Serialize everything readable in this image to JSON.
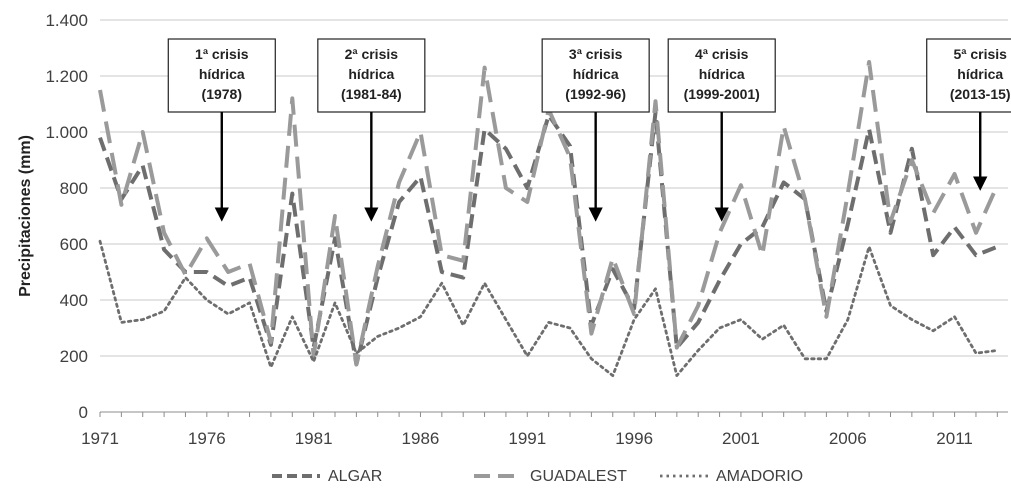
{
  "chart_data": {
    "type": "line",
    "title": "",
    "xlabel": "",
    "ylabel": "Precipitaciones (mm)",
    "ylim": [
      0,
      1400
    ],
    "xlim": [
      1971,
      2013.5
    ],
    "yticks": [
      0,
      200,
      400,
      600,
      800,
      1000,
      1200,
      1400
    ],
    "ytick_labels": [
      "0",
      "200",
      "400",
      "600",
      "800",
      "1.000",
      "1.200",
      "1.400"
    ],
    "xticks": [
      1971,
      1976,
      1981,
      1986,
      1991,
      1996,
      2001,
      2006,
      2011
    ],
    "xtick_labels": [
      "1971",
      "1976",
      "1981",
      "1986",
      "1991",
      "1996",
      "2001",
      "2006",
      "2011"
    ],
    "grid": "horizontal",
    "legend_position": "bottom",
    "x": [
      1971,
      1972,
      1973,
      1974,
      1975,
      1976,
      1977,
      1978,
      1979,
      1980,
      1981,
      1982,
      1983,
      1984,
      1985,
      1986,
      1987,
      1988,
      1989,
      1990,
      1991,
      1992,
      1993,
      1994,
      1995,
      1996,
      1997,
      1998,
      1999,
      2000,
      2001,
      2002,
      2003,
      2004,
      2005,
      2006,
      2007,
      2008,
      2009,
      2010,
      2011,
      2012,
      2013
    ],
    "series": [
      {
        "name": "ALGAR",
        "style": "dash",
        "color": "#6e6e6e",
        "values": [
          980,
          760,
          880,
          580,
          500,
          500,
          450,
          480,
          240,
          780,
          230,
          620,
          170,
          480,
          750,
          840,
          500,
          480,
          1010,
          940,
          800,
          1060,
          950,
          310,
          510,
          370,
          1070,
          230,
          320,
          470,
          600,
          660,
          820,
          760,
          360,
          670,
          1010,
          640,
          940,
          560,
          660,
          560,
          590
        ]
      },
      {
        "name": "GUADALEST",
        "style": "longdash",
        "color": "#9a9a9a",
        "values": [
          1150,
          740,
          1000,
          640,
          490,
          620,
          500,
          530,
          250,
          1120,
          200,
          700,
          170,
          520,
          820,
          1000,
          560,
          540,
          1230,
          800,
          750,
          1080,
          910,
          280,
          550,
          350,
          1110,
          230,
          380,
          640,
          810,
          560,
          1020,
          760,
          340,
          780,
          1250,
          680,
          900,
          710,
          850,
          640,
          810
        ]
      },
      {
        "name": "AMADORIO",
        "style": "dot",
        "color": "#6e6e6e",
        "values": [
          610,
          320,
          330,
          360,
          480,
          400,
          350,
          390,
          160,
          340,
          180,
          390,
          210,
          270,
          300,
          340,
          460,
          310,
          460,
          330,
          200,
          320,
          300,
          190,
          130,
          330,
          440,
          130,
          220,
          300,
          330,
          260,
          310,
          190,
          190,
          330,
          590,
          380,
          330,
          290,
          340,
          210,
          220
        ]
      }
    ],
    "annotations": [
      {
        "lines": [
          "1ª crisis",
          "hídrica",
          "(1978)"
        ],
        "arrow_x": 1976.7,
        "arrow_y": 690
      },
      {
        "lines": [
          "2ª crisis",
          "hídrica",
          "(1981-84)"
        ],
        "arrow_x": 1983.7,
        "arrow_y": 690
      },
      {
        "lines": [
          "3ª crisis",
          "hídrica",
          "(1992-96)"
        ],
        "arrow_x": 1994.2,
        "arrow_y": 690
      },
      {
        "lines": [
          "4ª crisis",
          "hídrica",
          "(1999-2001)"
        ],
        "arrow_x": 2000.1,
        "arrow_y": 690
      },
      {
        "lines": [
          "5ª crisis",
          "hídrica",
          "(2013-15)"
        ],
        "arrow_x": 2012.2,
        "arrow_y": 800
      }
    ]
  }
}
